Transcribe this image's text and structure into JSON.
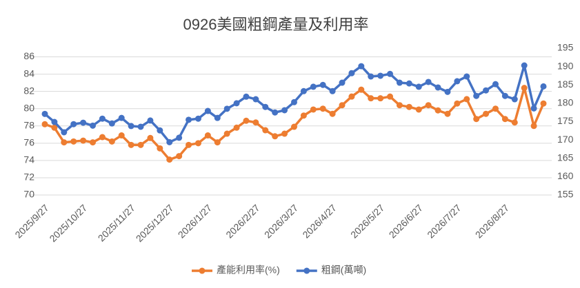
{
  "chart_data": {
    "type": "line",
    "title": "0926美國粗鋼產量及利用率",
    "categories": [
      "2025/9/27",
      null,
      null,
      null,
      "2025/10/27",
      null,
      null,
      null,
      null,
      "2025/11/27",
      null,
      null,
      null,
      "2025/12/27",
      null,
      null,
      null,
      "2026/1/27",
      null,
      null,
      null,
      null,
      "2026/2/27",
      null,
      null,
      null,
      "2026/3/27",
      null,
      null,
      null,
      "2026/4/27",
      null,
      null,
      null,
      null,
      "2026/5/27",
      null,
      null,
      null,
      "2026/6/27",
      null,
      null,
      null,
      "2026/7/27",
      null,
      null,
      null,
      null,
      "2026/8/27",
      null,
      null,
      null,
      null
    ],
    "series": [
      {
        "name": "產能利用率(%)",
        "color": "#ed7d31",
        "axis": "y",
        "values": [
          78.2,
          77.8,
          76.1,
          76.2,
          76.3,
          76.1,
          76.7,
          76.2,
          76.9,
          75.8,
          75.8,
          76.6,
          75.4,
          74.1,
          74.5,
          75.8,
          76.0,
          76.9,
          76.1,
          77.1,
          77.8,
          78.6,
          78.4,
          77.5,
          76.8,
          77.1,
          77.9,
          79.2,
          79.9,
          80.0,
          79.4,
          80.4,
          81.4,
          82.2,
          81.2,
          81.2,
          81.4,
          80.4,
          80.2,
          79.9,
          80.4,
          79.8,
          79.4,
          80.6,
          81.1,
          78.8,
          79.4,
          80.0,
          78.8,
          78.4,
          82.4,
          78.0,
          80.6
        ]
      },
      {
        "name": "粗鋼(萬噸)",
        "color": "#4472c4",
        "axis": "y2",
        "values": [
          177.1,
          174.9,
          172.1,
          174.3,
          174.7,
          173.9,
          175.8,
          174.5,
          176.0,
          173.8,
          173.6,
          175.3,
          172.6,
          169.4,
          170.6,
          175.5,
          175.8,
          177.9,
          176.0,
          178.5,
          180.0,
          181.8,
          181.1,
          179.0,
          177.5,
          178.1,
          180.3,
          183.3,
          184.5,
          185.0,
          183.3,
          185.6,
          188.2,
          190.1,
          187.3,
          187.5,
          188.0,
          185.6,
          185.4,
          184.5,
          185.8,
          184.3,
          183.1,
          186.0,
          187.3,
          182.0,
          183.5,
          185.2,
          182.0,
          181.1,
          190.3,
          178.6,
          184.6
        ]
      }
    ],
    "ylim": [
      70,
      87
    ],
    "yticks": [
      70,
      72,
      74,
      76,
      78,
      80,
      82,
      84,
      86
    ],
    "y2lim": [
      155,
      195
    ],
    "y2ticks": [
      155,
      160,
      165,
      170,
      175,
      180,
      185,
      190,
      195
    ],
    "grid": true,
    "legend": "bottom"
  }
}
